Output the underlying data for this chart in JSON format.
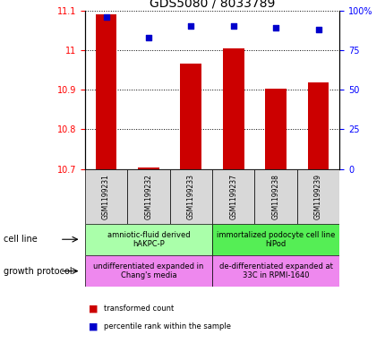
{
  "title": "GDS5080 / 8033789",
  "samples": [
    "GSM1199231",
    "GSM1199232",
    "GSM1199233",
    "GSM1199237",
    "GSM1199238",
    "GSM1199239"
  ],
  "bar_values": [
    11.09,
    10.703,
    10.967,
    11.005,
    10.902,
    10.918
  ],
  "bar_bottom": 10.7,
  "percentile_values": [
    96,
    83,
    90,
    90,
    89,
    88
  ],
  "ylim_left": [
    10.7,
    11.1
  ],
  "ylim_right": [
    0,
    100
  ],
  "yticks_left": [
    10.7,
    10.8,
    10.9,
    11.0,
    11.1
  ],
  "yticks_right": [
    0,
    25,
    50,
    75,
    100
  ],
  "bar_color": "#cc0000",
  "dot_color": "#0000cc",
  "bar_width": 0.5,
  "cell_line_labels": [
    "amniotic-fluid derived\nhAKPC-P",
    "immortalized podocyte cell line\nhIPod"
  ],
  "cell_line_colors": [
    "#aaffaa",
    "#55ee55"
  ],
  "growth_protocol_labels": [
    "undifferentiated expanded in\nChang's media",
    "de-differentiated expanded at\n33C in RPMI-1640"
  ],
  "growth_protocol_color": "#ee88ee",
  "legend_labels": [
    "transformed count",
    "percentile rank within the sample"
  ],
  "legend_colors": [
    "#cc0000",
    "#0000cc"
  ],
  "title_fontsize": 10,
  "tick_fontsize": 7,
  "sample_fontsize": 5.5,
  "annotation_fontsize": 6,
  "label_fontsize": 7
}
